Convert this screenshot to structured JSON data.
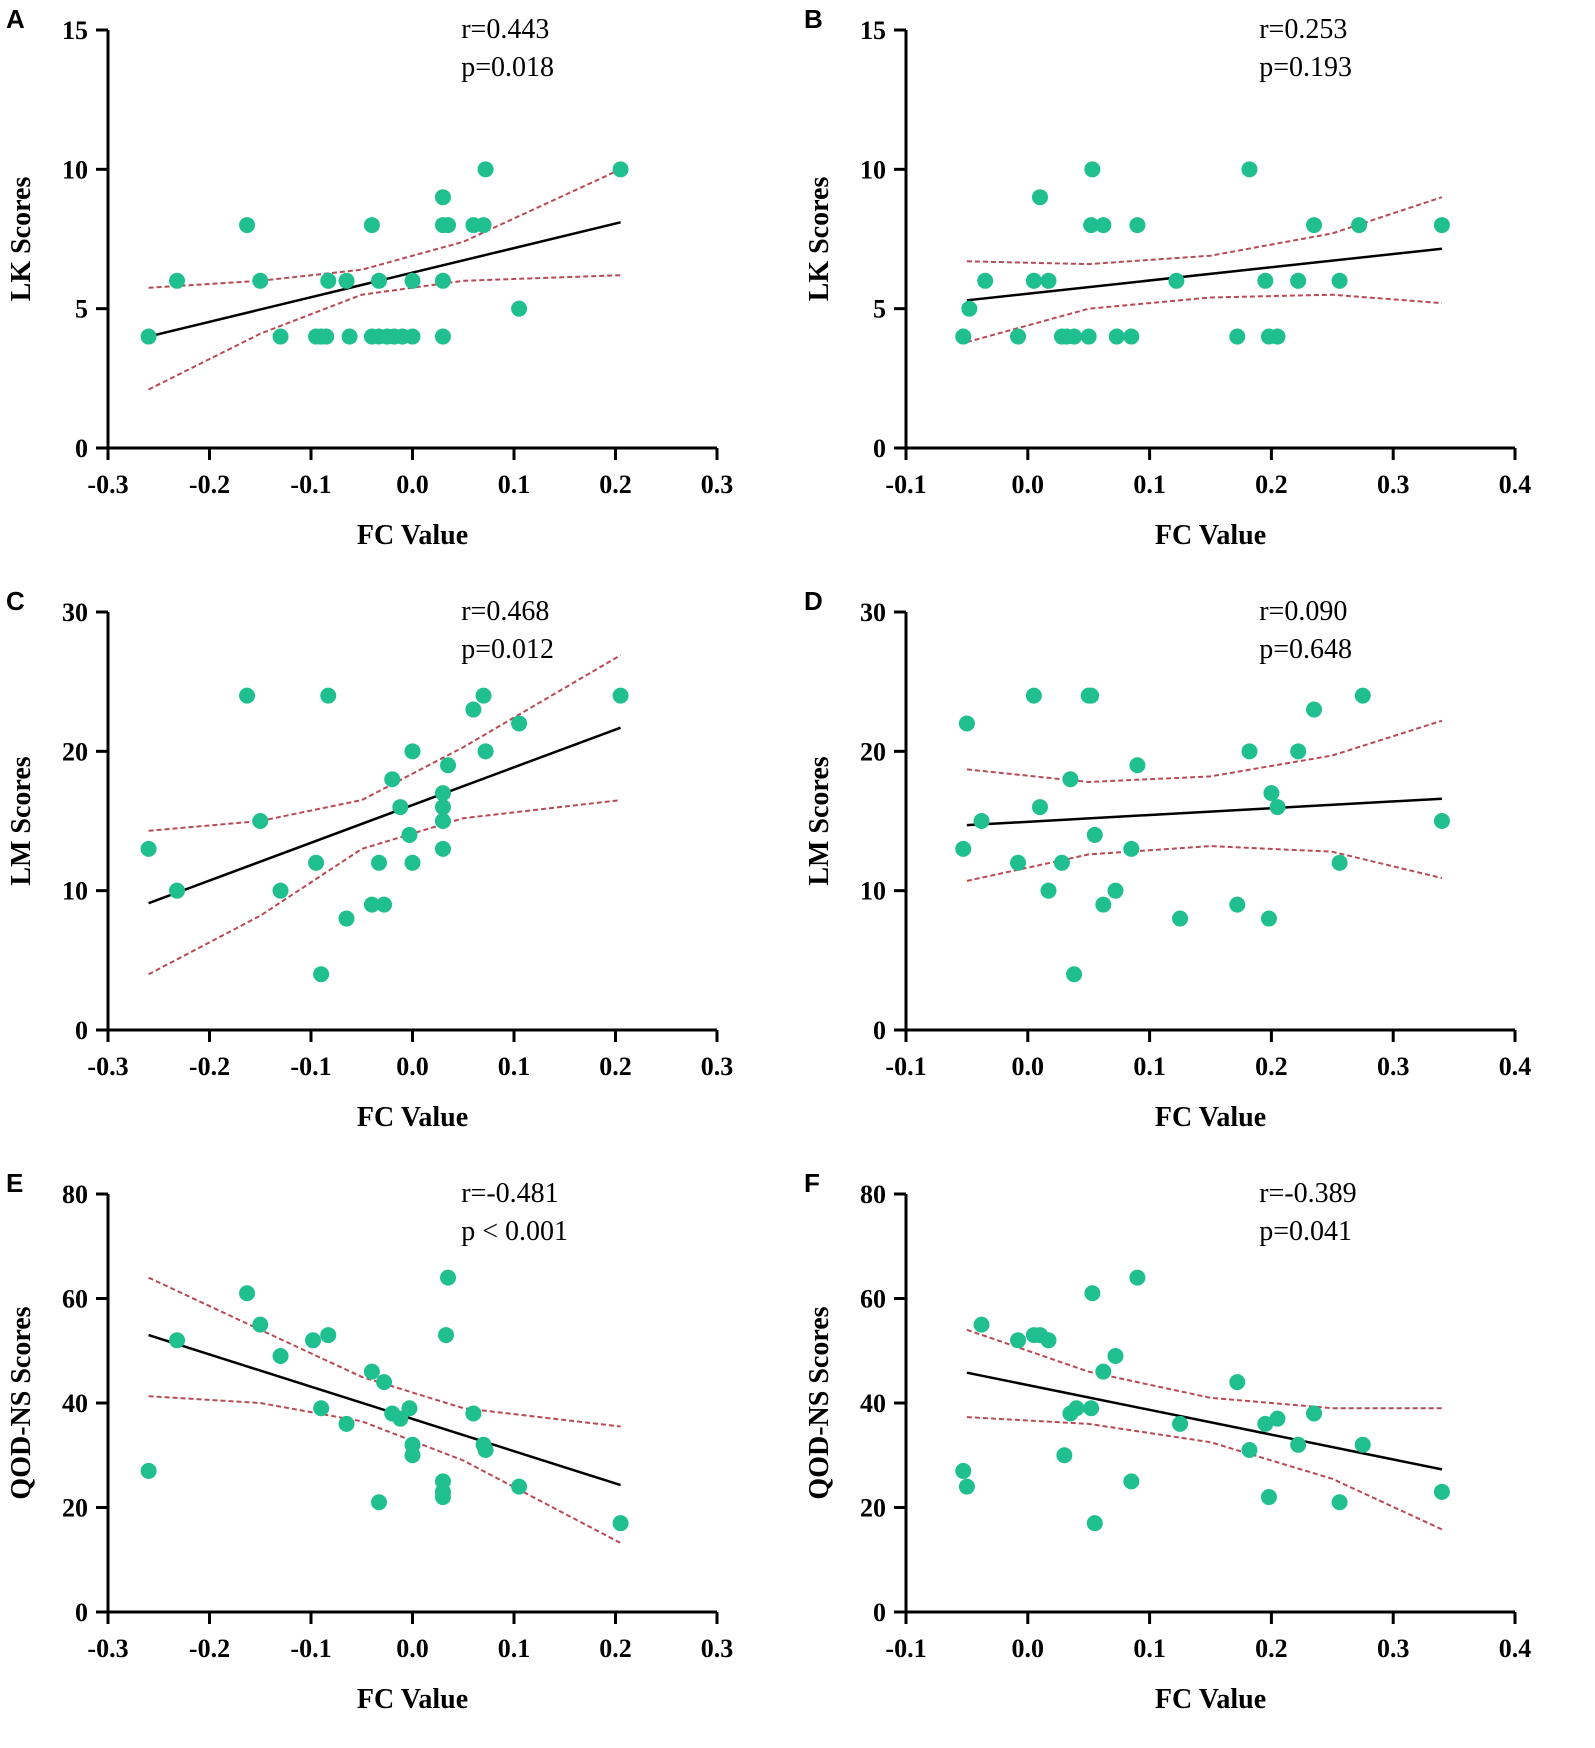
{
  "figure": {
    "point_color": "#1fbf8f",
    "fit_color": "#000000",
    "ci_color": "#b84a55"
  },
  "chart_data": [
    {
      "panel": "A",
      "type": "scatter",
      "xlabel": "FC Value",
      "ylabel": "LK Scores",
      "xlim": [
        -0.3,
        0.3
      ],
      "ylim": [
        0,
        15
      ],
      "xticks": [
        "-0.3",
        "-0.2",
        "-0.1",
        "0.0",
        "0.1",
        "0.2",
        "0.3"
      ],
      "yticks": [
        "0",
        "5",
        "10",
        "15"
      ],
      "annotation": [
        "r=0.443",
        "p=0.018"
      ],
      "fit": {
        "x": [
          -0.26,
          0.205
        ],
        "y": [
          4.0,
          8.1
        ]
      },
      "ci_upper": [
        [
          -0.26,
          5.75
        ],
        [
          -0.15,
          6.0
        ],
        [
          -0.05,
          6.4
        ],
        [
          0.05,
          7.4
        ],
        [
          0.205,
          10.0
        ]
      ],
      "ci_lower": [
        [
          -0.26,
          2.1
        ],
        [
          -0.15,
          4.1
        ],
        [
          -0.05,
          5.5
        ],
        [
          0.05,
          6.0
        ],
        [
          0.205,
          6.2
        ]
      ],
      "x": [
        -0.26,
        -0.232,
        -0.163,
        -0.15,
        -0.13,
        -0.095,
        -0.09,
        -0.085,
        -0.083,
        -0.065,
        -0.062,
        -0.04,
        -0.04,
        -0.033,
        -0.033,
        -0.025,
        -0.018,
        -0.01,
        0.0,
        0.0,
        0.03,
        0.03,
        0.03,
        0.03,
        0.035,
        0.06,
        0.07,
        0.072,
        0.105,
        0.205
      ],
      "y": [
        4,
        6,
        8,
        6,
        4,
        4,
        4,
        4,
        6,
        6,
        4,
        8,
        4,
        6,
        4,
        4,
        4,
        4,
        4,
        6,
        9,
        8,
        6,
        4,
        8,
        8,
        8,
        10,
        5,
        10
      ]
    },
    {
      "panel": "B",
      "type": "scatter",
      "xlabel": "FC Value",
      "ylabel": "LK Scores",
      "xlim": [
        -0.1,
        0.4
      ],
      "ylim": [
        0,
        15
      ],
      "xticks": [
        "-0.1",
        "0.0",
        "0.1",
        "0.2",
        "0.3",
        "0.4"
      ],
      "yticks": [
        "0",
        "5",
        "10",
        "15"
      ],
      "annotation": [
        "r=0.253",
        "p=0.193"
      ],
      "fit": {
        "x": [
          -0.05,
          0.34
        ],
        "y": [
          5.3,
          7.15
        ]
      },
      "ci_upper": [
        [
          -0.05,
          6.7
        ],
        [
          0.05,
          6.6
        ],
        [
          0.15,
          6.9
        ],
        [
          0.25,
          7.7
        ],
        [
          0.34,
          9.0
        ]
      ],
      "ci_lower": [
        [
          -0.05,
          3.8
        ],
        [
          0.05,
          5.0
        ],
        [
          0.15,
          5.4
        ],
        [
          0.25,
          5.5
        ],
        [
          0.34,
          5.2
        ]
      ],
      "x": [
        -0.053,
        -0.048,
        -0.035,
        -0.008,
        0.005,
        0.01,
        0.017,
        0.028,
        0.032,
        0.038,
        0.05,
        0.052,
        0.053,
        0.062,
        0.073,
        0.085,
        0.09,
        0.122,
        0.172,
        0.182,
        0.195,
        0.198,
        0.205,
        0.222,
        0.235,
        0.256,
        0.272,
        0.34
      ],
      "y": [
        4,
        5,
        6,
        4,
        6,
        9,
        6,
        4,
        4,
        4,
        4,
        8,
        10,
        8,
        4,
        4,
        8,
        6,
        4,
        10,
        6,
        4,
        4,
        6,
        8,
        6,
        8,
        8
      ]
    },
    {
      "panel": "C",
      "type": "scatter",
      "xlabel": "FC Value",
      "ylabel": "LM Scores",
      "xlim": [
        -0.3,
        0.3
      ],
      "ylim": [
        0,
        30
      ],
      "xticks": [
        "-0.3",
        "-0.2",
        "-0.1",
        "0.0",
        "0.1",
        "0.2",
        "0.3"
      ],
      "yticks": [
        "0",
        "10",
        "20",
        "30"
      ],
      "annotation": [
        "r=0.468",
        "p=0.012"
      ],
      "fit": {
        "x": [
          -0.26,
          0.205
        ],
        "y": [
          9.1,
          21.7
        ]
      },
      "ci_upper": [
        [
          -0.26,
          14.3
        ],
        [
          -0.15,
          15.0
        ],
        [
          -0.05,
          16.5
        ],
        [
          0.05,
          20.3
        ],
        [
          0.205,
          26.9
        ]
      ],
      "ci_lower": [
        [
          -0.26,
          4.0
        ],
        [
          -0.15,
          8.2
        ],
        [
          -0.05,
          13.0
        ],
        [
          0.05,
          15.2
        ],
        [
          0.205,
          16.5
        ]
      ],
      "x": [
        -0.26,
        -0.232,
        -0.163,
        -0.15,
        -0.13,
        -0.095,
        -0.09,
        -0.083,
        -0.065,
        -0.04,
        -0.033,
        -0.028,
        -0.02,
        -0.012,
        -0.003,
        0.0,
        0.0,
        0.03,
        0.03,
        0.03,
        0.03,
        0.035,
        0.06,
        0.07,
        0.072,
        0.105,
        0.205
      ],
      "y": [
        13,
        10,
        24,
        15,
        10,
        12,
        4,
        24,
        8,
        9,
        12,
        9,
        18,
        16,
        14,
        20,
        12,
        17,
        16,
        15,
        13,
        19,
        23,
        24,
        20,
        22,
        24
      ]
    },
    {
      "panel": "D",
      "type": "scatter",
      "xlabel": "FC Value",
      "ylabel": "LM Scores",
      "xlim": [
        -0.1,
        0.4
      ],
      "ylim": [
        0,
        30
      ],
      "xticks": [
        "-0.1",
        "0.0",
        "0.1",
        "0.2",
        "0.3",
        "0.4"
      ],
      "yticks": [
        "0",
        "10",
        "20",
        "30"
      ],
      "annotation": [
        "r=0.090",
        "p=0.648"
      ],
      "fit": {
        "x": [
          -0.05,
          0.34
        ],
        "y": [
          14.7,
          16.6
        ]
      },
      "ci_upper": [
        [
          -0.05,
          18.7
        ],
        [
          0.05,
          17.8
        ],
        [
          0.15,
          18.2
        ],
        [
          0.25,
          19.7
        ],
        [
          0.34,
          22.2
        ]
      ],
      "ci_lower": [
        [
          -0.05,
          10.7
        ],
        [
          0.05,
          12.6
        ],
        [
          0.15,
          13.2
        ],
        [
          0.25,
          12.8
        ],
        [
          0.34,
          10.9
        ]
      ],
      "x": [
        -0.053,
        -0.05,
        -0.038,
        -0.008,
        0.005,
        0.01,
        0.017,
        0.028,
        0.035,
        0.038,
        0.05,
        0.052,
        0.055,
        0.062,
        0.072,
        0.085,
        0.09,
        0.125,
        0.172,
        0.182,
        0.198,
        0.2,
        0.205,
        0.222,
        0.235,
        0.256,
        0.275,
        0.34
      ],
      "y": [
        13,
        22,
        15,
        12,
        24,
        16,
        10,
        12,
        18,
        4,
        24,
        24,
        14,
        9,
        10,
        13,
        19,
        8,
        9,
        20,
        8,
        17,
        16,
        20,
        23,
        12,
        24,
        15
      ]
    },
    {
      "panel": "E",
      "type": "scatter",
      "xlabel": "FC Value",
      "ylabel": "QOD-NS Scores",
      "xlim": [
        -0.3,
        0.3
      ],
      "ylim": [
        0,
        80
      ],
      "xticks": [
        "-0.3",
        "-0.2",
        "-0.1",
        "0.0",
        "0.1",
        "0.2",
        "0.3"
      ],
      "yticks": [
        "0",
        "20",
        "40",
        "60",
        "80"
      ],
      "annotation": [
        "r=-0.481",
        "p < 0.001"
      ],
      "fit": {
        "x": [
          -0.26,
          0.205
        ],
        "y": [
          53.0,
          24.3
        ]
      },
      "ci_upper": [
        [
          -0.26,
          64.0
        ],
        [
          -0.15,
          54.0
        ],
        [
          -0.05,
          45.0
        ],
        [
          0.05,
          39.0
        ],
        [
          0.205,
          35.5
        ]
      ],
      "ci_lower": [
        [
          -0.26,
          41.3
        ],
        [
          -0.15,
          40.0
        ],
        [
          -0.05,
          36.5
        ],
        [
          0.05,
          29.0
        ],
        [
          0.205,
          13.2
        ]
      ],
      "x": [
        -0.26,
        -0.232,
        -0.163,
        -0.15,
        -0.13,
        -0.098,
        -0.09,
        -0.083,
        -0.065,
        -0.04,
        -0.033,
        -0.028,
        -0.02,
        -0.012,
        -0.003,
        0.0,
        0.0,
        0.03,
        0.03,
        0.03,
        0.035,
        0.033,
        0.06,
        0.07,
        0.072,
        0.105,
        0.205
      ],
      "y": [
        27,
        52,
        61,
        55,
        49,
        52,
        39,
        53,
        36,
        46,
        21,
        44,
        38,
        37,
        39,
        32,
        30,
        25,
        23,
        22,
        64,
        53,
        38,
        32,
        31,
        24,
        17
      ]
    },
    {
      "panel": "F",
      "type": "scatter",
      "xlabel": "FC Value",
      "ylabel": "QOD-NS Scores",
      "xlim": [
        -0.1,
        0.4
      ],
      "ylim": [
        0,
        80
      ],
      "xticks": [
        "-0.1",
        "0.0",
        "0.1",
        "0.2",
        "0.3",
        "0.4"
      ],
      "yticks": [
        "0",
        "20",
        "40",
        "60",
        "80"
      ],
      "annotation": [
        "r=-0.389",
        "p=0.041"
      ],
      "fit": {
        "x": [
          -0.05,
          0.34
        ],
        "y": [
          45.8,
          27.3
        ]
      },
      "ci_upper": [
        [
          -0.05,
          54.0
        ],
        [
          0.05,
          46.0
        ],
        [
          0.15,
          41.0
        ],
        [
          0.25,
          39.0
        ],
        [
          0.34,
          39.0
        ]
      ],
      "ci_lower": [
        [
          -0.05,
          37.3
        ],
        [
          0.05,
          36.0
        ],
        [
          0.15,
          32.5
        ],
        [
          0.25,
          25.5
        ],
        [
          0.34,
          15.8
        ]
      ],
      "x": [
        -0.053,
        -0.05,
        -0.038,
        -0.008,
        0.005,
        0.01,
        0.017,
        0.03,
        0.035,
        0.04,
        0.052,
        0.053,
        0.055,
        0.062,
        0.072,
        0.085,
        0.09,
        0.125,
        0.172,
        0.182,
        0.195,
        0.198,
        0.205,
        0.222,
        0.235,
        0.256,
        0.275,
        0.34
      ],
      "y": [
        27,
        24,
        55,
        52,
        53,
        53,
        52,
        30,
        38,
        39,
        39,
        61,
        17,
        46,
        49,
        25,
        64,
        36,
        44,
        31,
        36,
        22,
        37,
        32,
        38,
        21,
        32,
        23
      ]
    }
  ]
}
